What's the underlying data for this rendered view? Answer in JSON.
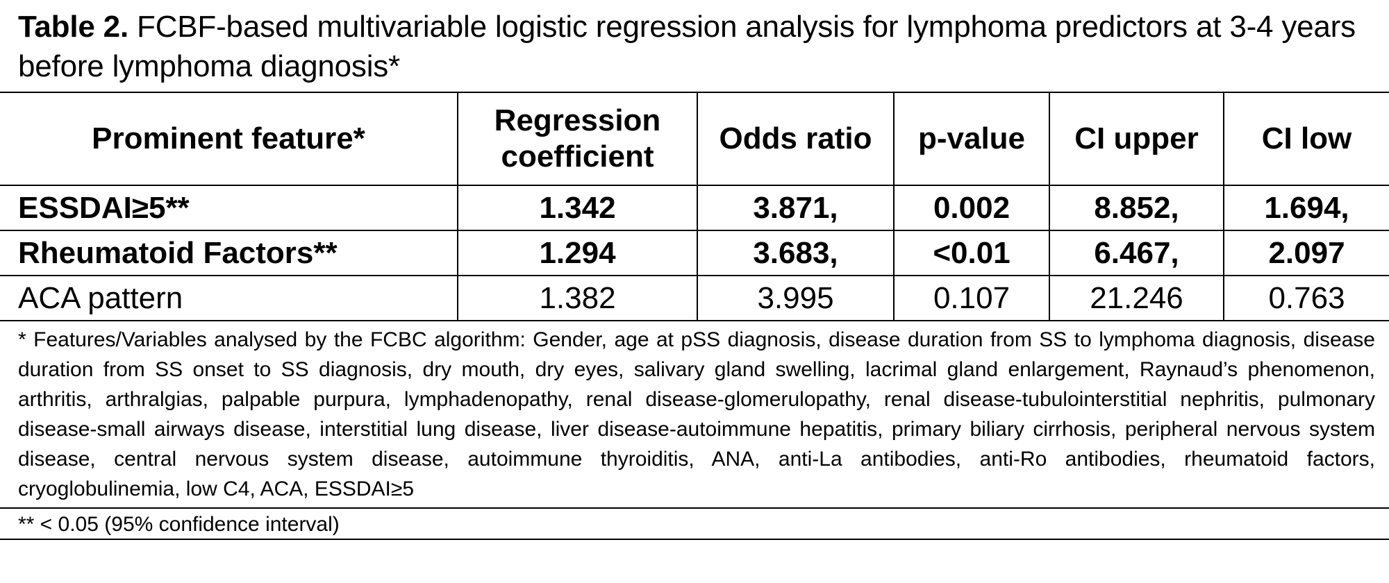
{
  "caption": {
    "label": "Table 2.",
    "text": "FCBF-based multivariable logistic regression analysis for lymphoma predictors at 3-4 years before lymphoma diagnosis*"
  },
  "table": {
    "headers": [
      "Prominent feature*",
      "Regression coefficient",
      "Odds ratio",
      "p-value",
      "CI upper",
      "CI low"
    ],
    "rows": [
      {
        "feature": "ESSDAI≥5**",
        "coef": "1.342",
        "or": "3.871,",
        "p": "0.002",
        "ci_upper": "8.852,",
        "ci_low": "1.694,"
      },
      {
        "feature": "Rheumatoid Factors**",
        "coef": "1.294",
        "or": "3.683,",
        "p": "<0.01",
        "ci_upper": "6.467,",
        "ci_low": "2.097"
      },
      {
        "feature": "ACA pattern",
        "coef": "1.382",
        "or": "3.995",
        "p": "0.107",
        "ci_upper": "21.246",
        "ci_low": "0.763"
      }
    ]
  },
  "footnotes": {
    "variables": "* Features/Variables analysed by the FCBC algorithm: Gender, age at pSS diagnosis, disease duration from SS to lymphoma diagnosis, disease duration from SS onset to SS diagnosis, dry mouth, dry eyes, salivary gland swelling, lacrimal gland enlargement, Raynaud’s phenomenon, arthritis, arthralgias, palpable purpura, lymphadenopathy, renal disease-glomerulopathy, renal disease-tubulointerstitial nephritis, pulmonary disease-small airways disease, interstitial lung disease, liver disease-autoimmune hepatitis, primary biliary cirrhosis, peripheral nervous system disease, central nervous system disease, autoimmune thyroiditis, ANA, anti-La antibodies, anti-Ro antibodies, rheumatoid factors, cryoglobulinemia, low C4, ACA, ESSDAI≥5",
    "significance": "** < 0.05 (95% confidence interval)"
  }
}
